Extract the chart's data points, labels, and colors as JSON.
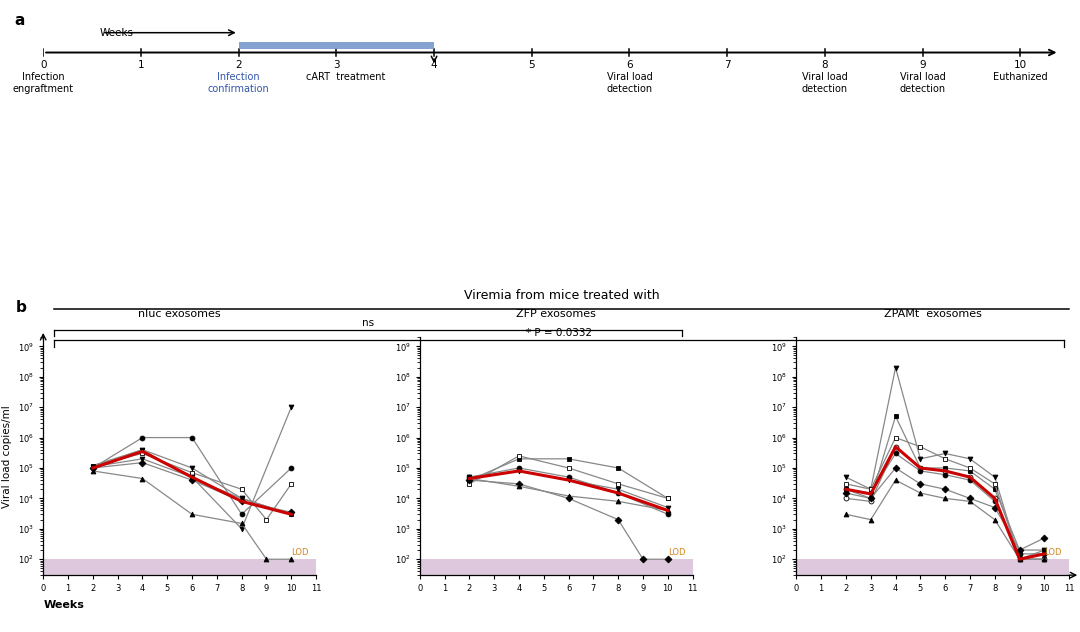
{
  "panel_a": {
    "label": "a",
    "weeks_label": "Weeks",
    "timeline_ticks": [
      0,
      1,
      2,
      3,
      4,
      5,
      6,
      7,
      8,
      9,
      10
    ],
    "blue_bar_start": 2,
    "blue_bar_end": 4,
    "annotations": [
      {
        "x": 0.0,
        "text": "Infection\nengraftment"
      },
      {
        "x": 2.0,
        "text": "Infection\nconfirmation",
        "color": "#3355aa"
      },
      {
        "x": 3.1,
        "text": "cART  treatment",
        "color": "black"
      },
      {
        "x": 6.0,
        "text": "Viral load\ndetection",
        "color": "black"
      },
      {
        "x": 8.0,
        "text": "Viral load\ndetection",
        "color": "black"
      },
      {
        "x": 9.0,
        "text": "Viral load\ndetection",
        "color": "black"
      },
      {
        "x": 10.0,
        "text": "Euthanized",
        "color": "black"
      }
    ]
  },
  "panel_b": {
    "label": "b",
    "title": "Viremia from mice treated with",
    "group_labels": [
      "nluc exosomes",
      "ZFP exosomes",
      "ZPAMt  exosomes"
    ],
    "ylabel": "Viral load copies/ml",
    "xlabel": "Weeks",
    "lod_value": 100,
    "lod_color": "#ddc8dd",
    "groups": [
      {
        "name": "nluc",
        "xlim": [
          0,
          11
        ],
        "ylim_log": [
          30,
          2000000000.0
        ],
        "yticks": [
          100.0,
          1000.0,
          10000.0,
          100000.0,
          1000000.0,
          10000000.0,
          100000000.0,
          1000000000.0
        ],
        "xticks": [
          0,
          1,
          2,
          3,
          4,
          5,
          6,
          7,
          8,
          9,
          10,
          11
        ],
        "subjects": [
          {
            "weeks": [
              2,
              4,
              6,
              8,
              10
            ],
            "values": [
              100000.0,
              1000000.0,
              1000000.0,
              3000.0,
              100000.0
            ],
            "marker": "o",
            "mfc": "black"
          },
          {
            "weeks": [
              2,
              4,
              6,
              8,
              10
            ],
            "values": [
              120000.0,
              400000.0,
              45000.0,
              10000.0,
              3000.0
            ],
            "marker": "s",
            "mfc": "black"
          },
          {
            "weeks": [
              2,
              4,
              6,
              8,
              9,
              10
            ],
            "values": [
              120000.0,
              300000.0,
              70000.0,
              20000.0,
              2000.0,
              30000.0
            ],
            "marker": "s",
            "mfc": "white"
          },
          {
            "weeks": [
              2,
              4,
              6,
              8,
              10
            ],
            "values": [
              90000.0,
              400000.0,
              100000.0,
              10000.0,
              3000.0
            ],
            "marker": "v",
            "mfc": "black"
          },
          {
            "weeks": [
              2,
              4,
              6,
              8,
              10
            ],
            "values": [
              110000.0,
              200000.0,
              50000.0,
              1000.0,
              10000000.0
            ],
            "marker": "v",
            "mfc": "black"
          },
          {
            "weeks": [
              2,
              4,
              6,
              8,
              9,
              10
            ],
            "values": [
              80000.0,
              45000.0,
              3000.0,
              1500.0,
              100,
              100
            ],
            "marker": "^",
            "mfc": "black"
          },
          {
            "weeks": [
              2,
              4,
              6,
              8,
              10
            ],
            "values": [
              100000.0,
              150000.0,
              40000.0,
              8000.0,
              3500.0
            ],
            "marker": "D",
            "mfc": "black"
          }
        ],
        "median_data": {
          "weeks": [
            2,
            4,
            6,
            8,
            10
          ],
          "values": [
            100000.0,
            350000.0,
            50000.0,
            8000.0,
            3000.0
          ]
        }
      },
      {
        "name": "ZFP",
        "xlim": [
          0,
          11
        ],
        "ylim_log": [
          30,
          2000000000.0
        ],
        "yticks": [
          100.0,
          1000.0,
          10000.0,
          100000.0,
          1000000.0,
          10000000.0,
          100000000.0,
          1000000000.0
        ],
        "xticks": [
          0,
          1,
          2,
          3,
          4,
          5,
          6,
          7,
          8,
          9,
          10,
          11
        ],
        "subjects": [
          {
            "weeks": [
              2,
              4,
              6,
              8,
              10
            ],
            "values": [
              50000.0,
              100000.0,
              50000.0,
              15000.0,
              3000.0
            ],
            "marker": "o",
            "mfc": "black"
          },
          {
            "weeks": [
              2,
              4,
              6,
              8,
              10
            ],
            "values": [
              40000.0,
              200000.0,
              200000.0,
              100000.0,
              10000.0
            ],
            "marker": "s",
            "mfc": "black"
          },
          {
            "weeks": [
              2,
              4,
              6,
              8,
              10
            ],
            "values": [
              30000.0,
              250000.0,
              100000.0,
              30000.0,
              10000.0
            ],
            "marker": "s",
            "mfc": "white"
          },
          {
            "weeks": [
              2,
              4,
              6,
              8,
              10
            ],
            "values": [
              50000.0,
              80000.0,
              40000.0,
              20000.0,
              5000.0
            ],
            "marker": "v",
            "mfc": "black"
          },
          {
            "weeks": [
              2,
              4,
              6,
              8,
              9,
              10
            ],
            "values": [
              40000.0,
              30000.0,
              10000.0,
              2000.0,
              100,
              100
            ],
            "marker": "D",
            "mfc": "black"
          },
          {
            "weeks": [
              2,
              4,
              6,
              8,
              10
            ],
            "values": [
              45000.0,
              25000.0,
              12000.0,
              8000.0,
              4000.0
            ],
            "marker": "^",
            "mfc": "black"
          }
        ],
        "median_data": {
          "weeks": [
            2,
            4,
            6,
            8,
            10
          ],
          "values": [
            45000.0,
            80000.0,
            40000.0,
            15000.0,
            4000.0
          ]
        }
      },
      {
        "name": "ZPAMt",
        "xlim": [
          0,
          11
        ],
        "ylim_log": [
          30,
          2000000000.0
        ],
        "yticks": [
          100.0,
          1000.0,
          10000.0,
          100000.0,
          1000000.0,
          10000000.0,
          100000000.0,
          1000000000.0
        ],
        "xticks": [
          0,
          1,
          2,
          3,
          4,
          5,
          6,
          7,
          8,
          9,
          10,
          11
        ],
        "subjects": [
          {
            "weeks": [
              2,
              3,
              4,
              5,
              6,
              7,
              8,
              9,
              10
            ],
            "values": [
              50000.0,
              20000.0,
              200000000.0,
              200000.0,
              300000.0,
              200000.0,
              50000.0,
              100,
              200
            ],
            "marker": "v",
            "mfc": "black"
          },
          {
            "weeks": [
              2,
              3,
              4,
              5,
              6,
              7,
              8,
              9,
              10
            ],
            "values": [
              20000.0,
              10000.0,
              5000000.0,
              100000.0,
              100000.0,
              80000.0,
              20000.0,
              200,
              200
            ],
            "marker": "s",
            "mfc": "black"
          },
          {
            "weeks": [
              2,
              3,
              4,
              5,
              6,
              7,
              8,
              9,
              10
            ],
            "values": [
              30000.0,
              20000.0,
              1000000.0,
              500000.0,
              200000.0,
              100000.0,
              30000.0,
              100,
              100
            ],
            "marker": "s",
            "mfc": "white"
          },
          {
            "weeks": [
              2,
              3,
              4,
              5,
              6,
              7,
              8,
              9,
              10
            ],
            "values": [
              10000.0,
              8000.0,
              500000.0,
              100000.0,
              80000.0,
              50000.0,
              10000.0,
              100,
              100
            ],
            "marker": "o",
            "mfc": "white"
          },
          {
            "weeks": [
              2,
              3,
              4,
              5,
              6,
              7,
              8,
              9,
              10
            ],
            "values": [
              20000.0,
              15000.0,
              300000.0,
              80000.0,
              60000.0,
              40000.0,
              8000.0,
              150,
              150
            ],
            "marker": "o",
            "mfc": "black"
          },
          {
            "weeks": [
              2,
              3,
              4,
              5,
              6,
              7,
              8,
              9,
              10
            ],
            "values": [
              15000.0,
              10000.0,
              100000.0,
              30000.0,
              20000.0,
              10000.0,
              5000.0,
              200,
              500
            ],
            "marker": "D",
            "mfc": "black"
          },
          {
            "weeks": [
              2,
              3,
              4,
              5,
              6,
              7,
              8,
              9,
              10
            ],
            "values": [
              3000.0,
              2000.0,
              40000.0,
              15000.0,
              10000.0,
              8000.0,
              2000.0,
              100,
              100
            ],
            "marker": "^",
            "mfc": "black"
          }
        ],
        "median_data": {
          "weeks": [
            2,
            3,
            4,
            5,
            6,
            7,
            8,
            9,
            10
          ],
          "values": [
            20000.0,
            14000.0,
            500000.0,
            100000.0,
            80000.0,
            50000.0,
            10000.0,
            100,
            150
          ]
        }
      }
    ]
  }
}
